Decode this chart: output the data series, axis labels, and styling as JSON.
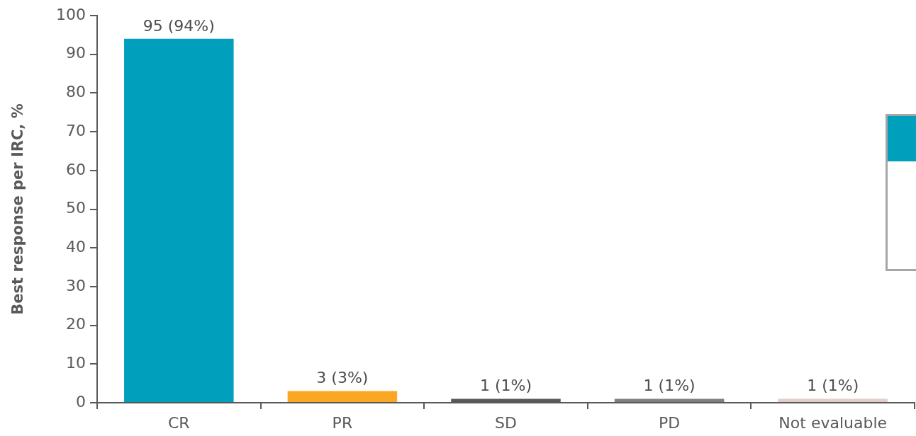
{
  "chart_data": {
    "type": "bar",
    "ylabel": "Best response per IRC, %",
    "categories": [
      "CR",
      "PR",
      "SD",
      "PD",
      "Not evaluable"
    ],
    "values": [
      94,
      3,
      1,
      1,
      1
    ],
    "colors": [
      "#00a0bc",
      "#faa823",
      "#58585a",
      "#7f7f7f",
      "#e2cec6"
    ],
    "value_labels": [
      "95 (94%)",
      "3 (3%)",
      "1 (1%)",
      "1 (1%)",
      "1 (1%)"
    ],
    "ylim": [
      0,
      100
    ],
    "yticks": [
      0,
      10,
      20,
      30,
      40,
      50,
      60,
      70,
      80,
      90,
      100
    ],
    "grid": false
  }
}
